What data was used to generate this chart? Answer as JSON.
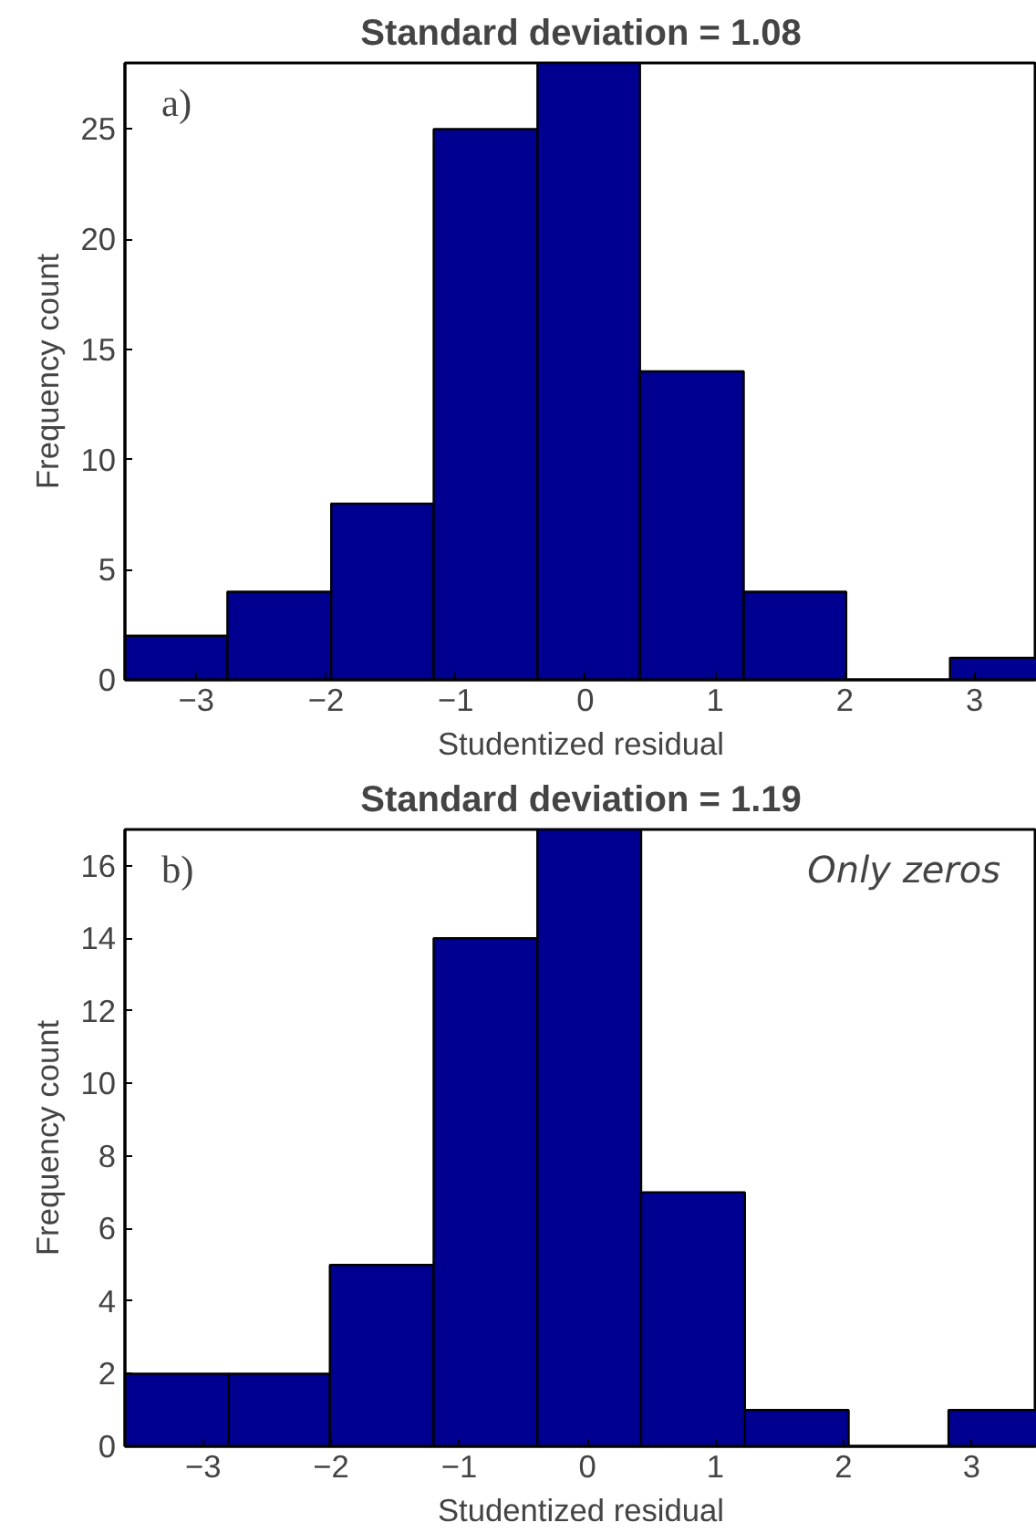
{
  "chart_data": [
    {
      "type": "histogram",
      "title": "Standard deviation = 1.08",
      "xlabel": "Studentized residual",
      "ylabel": "Frequency count",
      "annotations": [
        "a)"
      ],
      "bins": [
        -3.55,
        -2.76,
        -1.96,
        -1.17,
        -0.37,
        0.42,
        1.22,
        2.01,
        2.81,
        3.6
      ],
      "values": [
        2,
        4,
        8,
        25,
        28,
        14,
        4,
        0,
        1
      ],
      "color": "#000090",
      "xlim": [
        -3.55,
        3.48
      ],
      "ylim": [
        0,
        28
      ],
      "xticks": [
        -3,
        -2,
        -1,
        0,
        1,
        2,
        3
      ],
      "yticks": [
        0,
        5,
        10,
        15,
        20,
        25
      ],
      "grid": false
    },
    {
      "type": "histogram",
      "title": "Standard deviation = 1.19",
      "xlabel": "Studentized residual",
      "ylabel": "Frequency count",
      "annotations": [
        "b)",
        "Only zeros"
      ],
      "bins": [
        -3.61,
        -2.8,
        -2.01,
        -1.2,
        -0.39,
        0.42,
        1.23,
        2.04,
        2.82,
        3.63
      ],
      "values": [
        2,
        2,
        5,
        14,
        17,
        7,
        1,
        0,
        1
      ],
      "color": "#000090",
      "xlim": [
        -3.61,
        3.51
      ],
      "ylim": [
        0,
        17
      ],
      "xticks": [
        -3,
        -2,
        -1,
        0,
        1,
        2,
        3
      ],
      "yticks": [
        0,
        2,
        4,
        6,
        8,
        10,
        12,
        14,
        16
      ],
      "grid": false
    }
  ]
}
